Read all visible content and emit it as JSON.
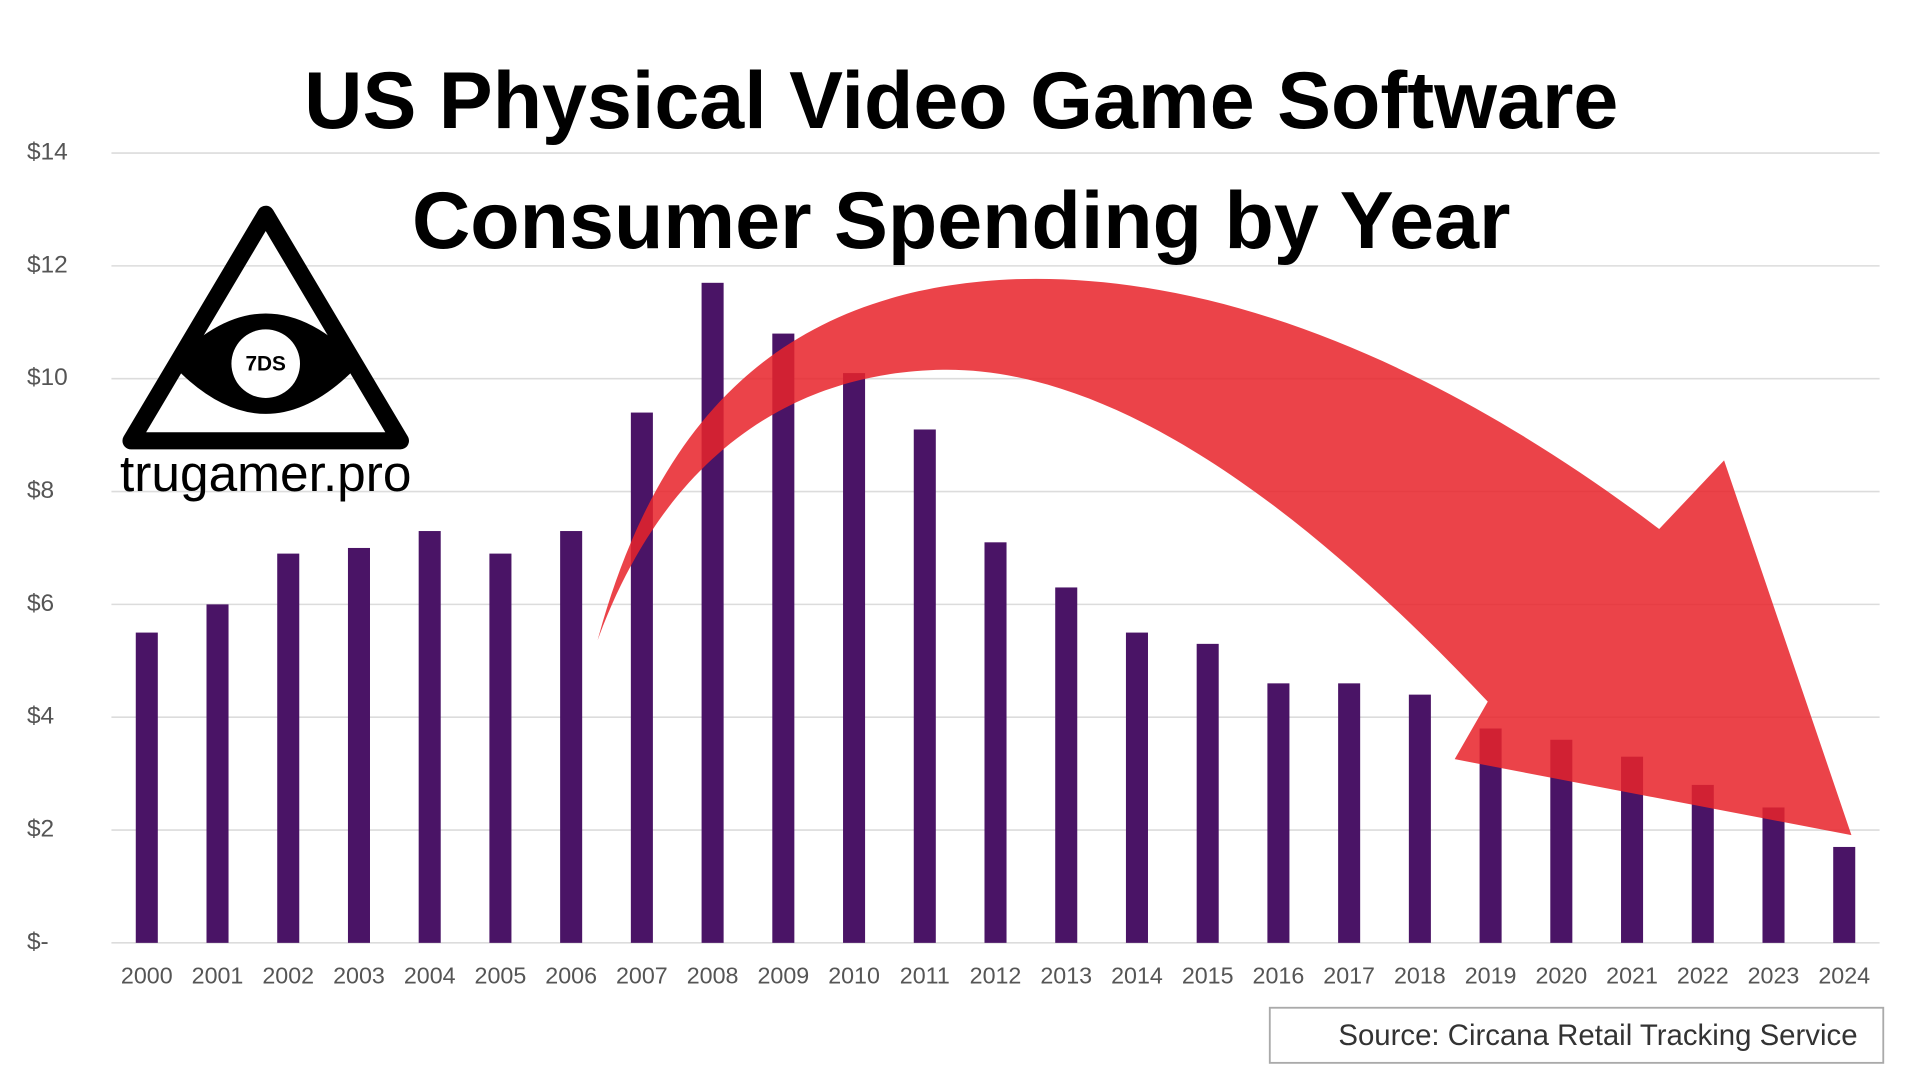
{
  "chart_data": {
    "type": "bar",
    "title_lines": [
      "US Physical Video Game Software",
      "Consumer Spending by Year"
    ],
    "categories": [
      "2000",
      "2001",
      "2002",
      "2003",
      "2004",
      "2005",
      "2006",
      "2007",
      "2008",
      "2009",
      "2010",
      "2011",
      "2012",
      "2013",
      "2014",
      "2015",
      "2016",
      "2017",
      "2018",
      "2019",
      "2020",
      "2021",
      "2022",
      "2023",
      "2024"
    ],
    "values": [
      5.5,
      6.0,
      6.9,
      7.0,
      7.3,
      6.9,
      7.3,
      9.4,
      11.7,
      10.8,
      10.1,
      9.1,
      7.1,
      6.3,
      5.5,
      5.3,
      4.6,
      4.6,
      4.4,
      3.8,
      3.6,
      3.3,
      2.8,
      2.4,
      1.7
    ],
    "color": "#4a1466",
    "ylim": [
      0,
      14
    ],
    "yticks": [
      {
        "value": 0,
        "label": "$-"
      },
      {
        "value": 2,
        "label": "$2"
      },
      {
        "value": 4,
        "label": "$4"
      },
      {
        "value": 6,
        "label": "$6"
      },
      {
        "value": 8,
        "label": "$8"
      },
      {
        "value": 10,
        "label": "$10"
      },
      {
        "value": 12,
        "label": "$12"
      },
      {
        "value": 14,
        "label": "$14"
      }
    ],
    "grid": true,
    "source": "Source: Circana Retail Tracking Service",
    "logo_badge": "7DS",
    "logo_text": "trugamer.pro"
  }
}
